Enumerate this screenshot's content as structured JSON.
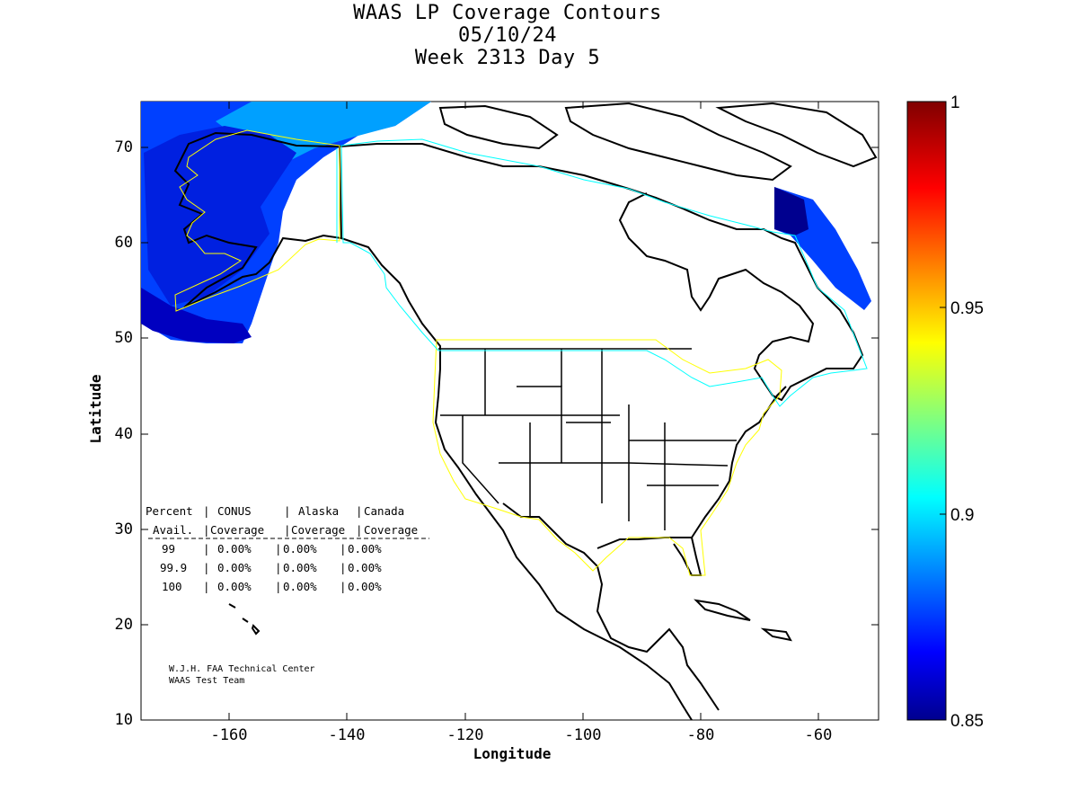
{
  "title": {
    "line1": "WAAS LP Coverage Contours",
    "line2": "05/10/24",
    "line3": "Week 2313 Day 5"
  },
  "axes": {
    "xlabel": "Longitude",
    "ylabel": "Latitude",
    "x_ticks": [
      "-160",
      "-140",
      "-120",
      "-100",
      "-80",
      "-60"
    ],
    "y_ticks": [
      "10",
      "20",
      "30",
      "40",
      "50",
      "60",
      "70"
    ],
    "xlim": [
      -175,
      -50
    ],
    "ylim": [
      10,
      75
    ]
  },
  "colorbar": {
    "range": [
      0.85,
      1
    ],
    "ticks": [
      "1",
      "0.95",
      "0.9",
      "0.85"
    ],
    "colormap": "jet"
  },
  "table": {
    "header1": [
      "Percent",
      "CONUS",
      "Alaska",
      "Canada"
    ],
    "header2": [
      "Avail.",
      "Coverage",
      "Coverage",
      "Coverage"
    ],
    "rows": [
      {
        "avail": "99",
        "conus": "0.00%",
        "alaska": "0.00%",
        "canada": "0.00%"
      },
      {
        "avail": "99.9",
        "conus": "0.00%",
        "alaska": "0.00%",
        "canada": "0.00%"
      },
      {
        "avail": "100",
        "conus": "0.00%",
        "alaska": "0.00%",
        "canada": "0.00%"
      }
    ]
  },
  "credit": {
    "line1": "W.J.H. FAA Technical Center",
    "line2": "WAAS Test Team"
  },
  "colors": {
    "conus_boundary": "#ffff00",
    "canada_boundary": "#00ffff",
    "coastline": "#000000",
    "coverage_dark": "#00008f",
    "coverage_mid": "#0040ff",
    "coverage_light": "#00a0ff"
  }
}
